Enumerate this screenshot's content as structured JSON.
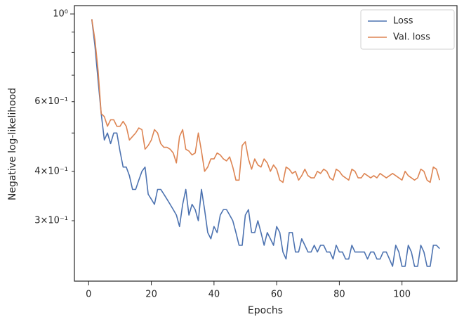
{
  "chart_data": {
    "type": "line",
    "xlabel": "Epochs",
    "ylabel": "Negative log-likelihood",
    "x": [
      1,
      2,
      3,
      4,
      5,
      6,
      7,
      8,
      9,
      10,
      11,
      12,
      13,
      14,
      15,
      16,
      17,
      18,
      19,
      20,
      21,
      22,
      23,
      24,
      25,
      26,
      27,
      28,
      29,
      30,
      31,
      32,
      33,
      34,
      35,
      36,
      37,
      38,
      39,
      40,
      41,
      42,
      43,
      44,
      45,
      46,
      47,
      48,
      49,
      50,
      51,
      52,
      53,
      54,
      55,
      56,
      57,
      58,
      59,
      60,
      61,
      62,
      63,
      64,
      65,
      66,
      67,
      68,
      69,
      70,
      71,
      72,
      73,
      74,
      75,
      76,
      77,
      78,
      79,
      80,
      81,
      82,
      83,
      84,
      85,
      86,
      87,
      88,
      89,
      90,
      91,
      92,
      93,
      94,
      95,
      96,
      97,
      98,
      99,
      100,
      101,
      102,
      103,
      104,
      105,
      106,
      107,
      108,
      109,
      110,
      111,
      112
    ],
    "series": [
      {
        "name": "Loss",
        "color": "#4c72b0",
        "values": [
          0.97,
          0.83,
          0.68,
          0.56,
          0.48,
          0.5,
          0.47,
          0.5,
          0.5,
          0.45,
          0.41,
          0.41,
          0.39,
          0.36,
          0.36,
          0.38,
          0.4,
          0.41,
          0.35,
          0.34,
          0.33,
          0.36,
          0.36,
          0.35,
          0.34,
          0.33,
          0.32,
          0.31,
          0.29,
          0.33,
          0.36,
          0.31,
          0.33,
          0.32,
          0.3,
          0.36,
          0.32,
          0.28,
          0.27,
          0.29,
          0.28,
          0.31,
          0.32,
          0.32,
          0.31,
          0.3,
          0.28,
          0.26,
          0.26,
          0.31,
          0.32,
          0.28,
          0.28,
          0.3,
          0.28,
          0.26,
          0.28,
          0.27,
          0.26,
          0.29,
          0.28,
          0.25,
          0.24,
          0.28,
          0.28,
          0.25,
          0.25,
          0.27,
          0.26,
          0.25,
          0.25,
          0.26,
          0.25,
          0.26,
          0.26,
          0.25,
          0.25,
          0.24,
          0.26,
          0.25,
          0.25,
          0.24,
          0.24,
          0.26,
          0.25,
          0.25,
          0.25,
          0.25,
          0.24,
          0.25,
          0.25,
          0.24,
          0.24,
          0.25,
          0.25,
          0.24,
          0.23,
          0.26,
          0.25,
          0.23,
          0.23,
          0.26,
          0.25,
          0.23,
          0.23,
          0.26,
          0.25,
          0.23,
          0.23,
          0.26,
          0.26,
          0.255
        ]
      },
      {
        "name": "Val. loss",
        "color": "#dd8452",
        "values": [
          0.97,
          0.86,
          0.72,
          0.56,
          0.55,
          0.52,
          0.54,
          0.54,
          0.52,
          0.52,
          0.535,
          0.52,
          0.48,
          0.49,
          0.5,
          0.515,
          0.51,
          0.455,
          0.465,
          0.48,
          0.51,
          0.5,
          0.47,
          0.46,
          0.46,
          0.455,
          0.445,
          0.42,
          0.49,
          0.51,
          0.455,
          0.45,
          0.44,
          0.445,
          0.5,
          0.45,
          0.4,
          0.41,
          0.43,
          0.43,
          0.445,
          0.44,
          0.43,
          0.425,
          0.435,
          0.41,
          0.38,
          0.38,
          0.465,
          0.475,
          0.43,
          0.405,
          0.43,
          0.415,
          0.41,
          0.43,
          0.42,
          0.4,
          0.415,
          0.405,
          0.38,
          0.375,
          0.41,
          0.405,
          0.395,
          0.4,
          0.38,
          0.39,
          0.405,
          0.39,
          0.385,
          0.385,
          0.4,
          0.395,
          0.405,
          0.4,
          0.385,
          0.38,
          0.405,
          0.4,
          0.39,
          0.385,
          0.38,
          0.405,
          0.4,
          0.385,
          0.385,
          0.395,
          0.39,
          0.385,
          0.39,
          0.385,
          0.395,
          0.39,
          0.385,
          0.39,
          0.395,
          0.39,
          0.385,
          0.38,
          0.4,
          0.39,
          0.385,
          0.38,
          0.385,
          0.405,
          0.4,
          0.38,
          0.375,
          0.41,
          0.405,
          0.38
        ]
      }
    ],
    "xlim": [
      -4.55,
      117.55
    ],
    "xticks": [
      0,
      20,
      40,
      60,
      80,
      100
    ],
    "ylim": [
      0.211,
      1.05
    ],
    "yscale": "log",
    "yticks": [
      {
        "value": 1,
        "label": "10⁰"
      },
      {
        "value": 0.6,
        "label": "6×10⁻¹"
      },
      {
        "value": 0.4,
        "label": "4×10⁻¹"
      },
      {
        "value": 0.3,
        "label": "3×10⁻¹"
      }
    ],
    "minor_yticks": [
      0.5,
      0.7,
      0.8,
      0.9
    ],
    "legend": "upper right",
    "grid": false
  }
}
